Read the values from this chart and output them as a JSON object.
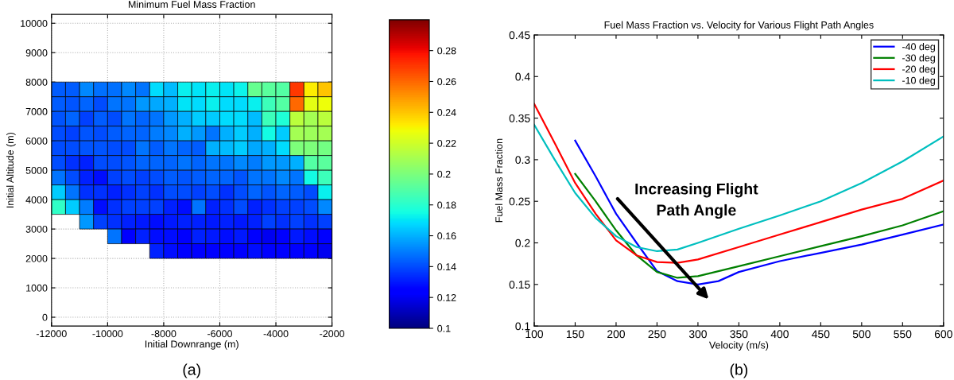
{
  "chart_data": [
    {
      "type": "heatmap",
      "title": "Minimum Fuel Mass Fraction",
      "xlabel": "Initial Downrange (m)",
      "ylabel": "Initial Altitude (m)",
      "x": [
        -11750,
        -11250,
        -10750,
        -10250,
        -9750,
        -9250,
        -8750,
        -8250,
        -7750,
        -7250,
        -6750,
        -6250,
        -5750,
        -5250,
        -4750,
        -4250,
        -3750,
        -3250,
        -2750,
        -2250
      ],
      "y": [
        7750,
        7250,
        6750,
        6250,
        5750,
        5250,
        4750,
        4250,
        3750,
        3250,
        2750,
        2250
      ],
      "cells": [
        [
          0.143,
          0.143,
          0.152,
          0.147,
          0.147,
          0.152,
          0.148,
          0.168,
          0.162,
          0.172,
          0.17,
          0.172,
          0.17,
          0.173,
          0.195,
          0.192,
          0.19,
          0.27,
          0.232,
          0.24
        ],
        [
          0.143,
          0.142,
          0.145,
          0.14,
          0.148,
          0.148,
          0.155,
          0.158,
          0.16,
          0.17,
          0.168,
          0.172,
          0.168,
          0.168,
          0.172,
          0.185,
          0.19,
          0.26,
          0.225,
          0.228
        ],
        [
          0.142,
          0.145,
          0.138,
          0.143,
          0.14,
          0.148,
          0.145,
          0.148,
          0.155,
          0.16,
          0.165,
          0.165,
          0.168,
          0.168,
          0.162,
          0.185,
          0.178,
          0.215,
          0.21,
          0.215
        ],
        [
          0.14,
          0.138,
          0.142,
          0.14,
          0.143,
          0.145,
          0.145,
          0.15,
          0.152,
          0.16,
          0.155,
          0.148,
          0.16,
          0.165,
          0.16,
          0.175,
          0.165,
          0.21,
          0.208,
          0.21
        ],
        [
          0.14,
          0.14,
          0.142,
          0.142,
          0.14,
          0.14,
          0.148,
          0.143,
          0.148,
          0.145,
          0.143,
          0.16,
          0.162,
          0.165,
          0.158,
          0.16,
          0.168,
          0.2,
          0.2,
          0.198
        ],
        [
          0.14,
          0.135,
          0.132,
          0.14,
          0.14,
          0.142,
          0.145,
          0.145,
          0.145,
          0.148,
          0.145,
          0.148,
          0.148,
          0.152,
          0.15,
          0.155,
          0.155,
          0.16,
          0.19,
          0.192
        ],
        [
          0.148,
          0.14,
          0.132,
          0.128,
          0.138,
          0.14,
          0.138,
          0.14,
          0.143,
          0.142,
          0.143,
          0.145,
          0.145,
          0.142,
          0.148,
          0.148,
          0.152,
          0.148,
          0.175,
          0.185
        ],
        [
          0.165,
          0.148,
          0.135,
          0.135,
          0.132,
          0.135,
          0.138,
          0.135,
          0.14,
          0.14,
          0.138,
          0.14,
          0.135,
          0.14,
          0.145,
          0.142,
          0.145,
          0.143,
          0.14,
          0.172
        ],
        [
          0.182,
          0.165,
          0.15,
          0.128,
          0.135,
          0.138,
          0.138,
          0.138,
          0.132,
          0.128,
          0.148,
          0.132,
          0.135,
          0.14,
          0.132,
          0.135,
          0.138,
          0.138,
          0.14,
          0.152
        ],
        [
          null,
          null,
          0.155,
          0.138,
          0.135,
          0.132,
          0.13,
          0.128,
          0.13,
          0.132,
          0.132,
          0.13,
          0.132,
          0.13,
          0.132,
          0.138,
          0.135,
          0.138,
          0.135,
          0.138
        ],
        [
          null,
          null,
          null,
          null,
          0.148,
          0.125,
          0.132,
          0.128,
          0.128,
          0.125,
          0.132,
          0.13,
          0.128,
          0.13,
          0.125,
          0.12,
          0.122,
          0.13,
          0.128,
          0.125
        ],
        [
          null,
          null,
          null,
          null,
          null,
          null,
          null,
          0.132,
          0.128,
          0.125,
          0.125,
          0.125,
          0.125,
          0.125,
          0.128,
          0.125,
          0.125,
          0.122,
          0.123,
          0.12
        ]
      ],
      "xlim": [
        -12000,
        -2000
      ],
      "xticks": [
        -12000,
        -10000,
        -8000,
        -6000,
        -4000,
        -2000
      ],
      "ylim": [
        -300,
        10300
      ],
      "yticks": [
        0,
        1000,
        2000,
        3000,
        4000,
        5000,
        6000,
        7000,
        8000,
        9000,
        10000
      ],
      "clim": [
        0.1,
        0.3
      ],
      "cticks": [
        0.1,
        0.12,
        0.14,
        0.16,
        0.18,
        0.2,
        0.22,
        0.24,
        0.26,
        0.28
      ],
      "grid": true,
      "annotations": [
        "(a)"
      ]
    },
    {
      "type": "line",
      "title": "Fuel Mass Fraction vs. Velocity for Various Flight Path Angles",
      "xlabel": "Velocity (m/s)",
      "ylabel": "Fuel Mass Fraction",
      "series": [
        {
          "name": "-40 deg",
          "color": "#0000ff",
          "x": [
            150,
            175,
            200,
            225,
            250,
            275,
            300,
            325,
            350,
            400,
            450,
            500,
            550,
            600
          ],
          "values": [
            0.323,
            0.28,
            0.235,
            0.2,
            0.166,
            0.154,
            0.15,
            0.154,
            0.165,
            0.178,
            0.188,
            0.198,
            0.21,
            0.222
          ]
        },
        {
          "name": "-30 deg",
          "color": "#008000",
          "x": [
            150,
            175,
            200,
            225,
            250,
            275,
            300,
            350,
            400,
            450,
            500,
            550,
            600
          ],
          "values": [
            0.283,
            0.25,
            0.215,
            0.185,
            0.165,
            0.158,
            0.16,
            0.172,
            0.184,
            0.196,
            0.208,
            0.221,
            0.238
          ]
        },
        {
          "name": "-20 deg",
          "color": "#ff0000",
          "x": [
            100,
            125,
            150,
            175,
            200,
            225,
            250,
            275,
            300,
            350,
            400,
            450,
            500,
            550,
            600
          ],
          "values": [
            0.367,
            0.32,
            0.272,
            0.235,
            0.203,
            0.185,
            0.177,
            0.176,
            0.18,
            0.195,
            0.21,
            0.225,
            0.24,
            0.253,
            0.275
          ]
        },
        {
          "name": "-10 deg",
          "color": "#00bfbf",
          "x": [
            100,
            125,
            150,
            175,
            200,
            225,
            250,
            275,
            300,
            350,
            400,
            450,
            500,
            550,
            600
          ],
          "values": [
            0.342,
            0.3,
            0.26,
            0.23,
            0.208,
            0.195,
            0.19,
            0.192,
            0.2,
            0.217,
            0.233,
            0.25,
            0.272,
            0.298,
            0.328
          ]
        }
      ],
      "xlim": [
        100,
        600
      ],
      "xticks": [
        100,
        150,
        200,
        250,
        300,
        350,
        400,
        450,
        500,
        550,
        600
      ],
      "ylim": [
        0.1,
        0.45
      ],
      "yticks": [
        0.1,
        0.15,
        0.2,
        0.25,
        0.3,
        0.35,
        0.4,
        0.45
      ],
      "grid": false,
      "legend": "top right",
      "marker": "none",
      "line_style": "solid",
      "annotations": [
        "Increasing Flight\nPath Angle",
        "(b)"
      ]
    }
  ]
}
